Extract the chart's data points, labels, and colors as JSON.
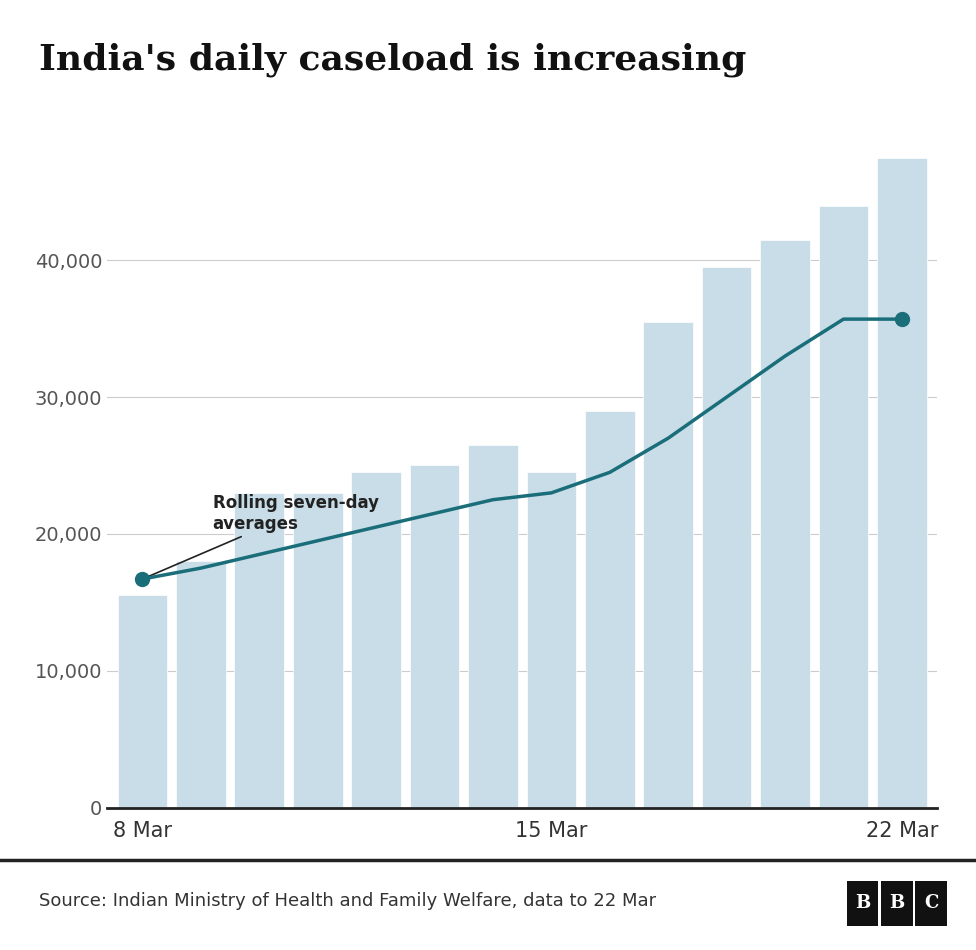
{
  "title": "India's daily caseload is increasing",
  "source_text": "Source: Indian Ministry of Health and Family Welfare, data to 22 Mar",
  "bar_values": [
    15500,
    18000,
    23000,
    23000,
    24500,
    25000,
    26500,
    24500,
    29000,
    35500,
    39500,
    41500,
    44000,
    47500
  ],
  "line_values": [
    16700,
    17500,
    18500,
    19500,
    20500,
    21500,
    22500,
    23000,
    24500,
    27000,
    30000,
    33000,
    35700,
    35700
  ],
  "bar_color": "#c8dde8",
  "line_color": "#1a6e7a",
  "dot_indices": [
    0,
    13
  ],
  "annotation_text": "Rolling seven-day\naverages",
  "ytick_values": [
    0,
    10000,
    20000,
    30000,
    40000
  ],
  "ytick_labels": [
    "0",
    "10,000",
    "20,000",
    "30,000",
    "40,000"
  ],
  "ylim": [
    0,
    50000
  ],
  "background_color": "#ffffff",
  "title_fontsize": 26,
  "axis_fontsize": 14,
  "source_fontsize": 13
}
